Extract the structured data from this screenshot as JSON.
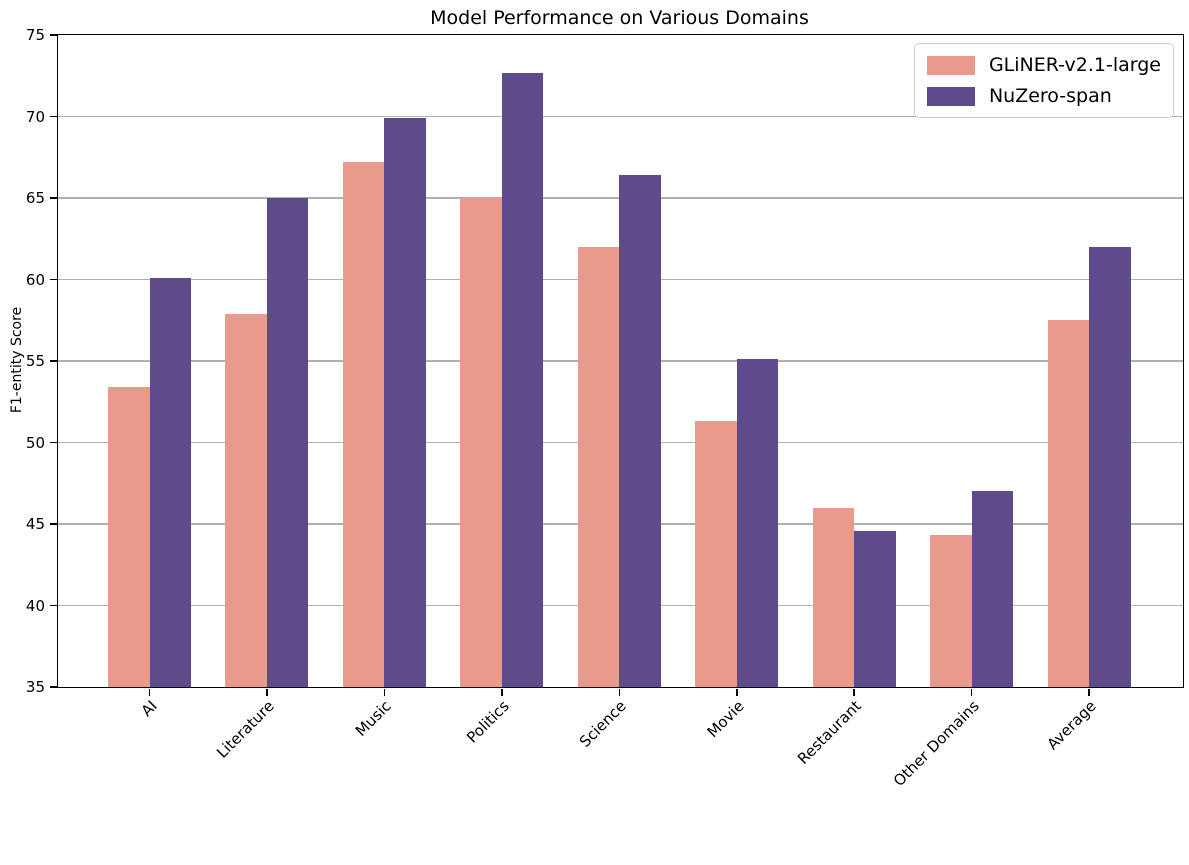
{
  "chart_data": {
    "type": "bar",
    "title": "Model Performance on Various Domains",
    "xlabel": "",
    "ylabel": "F1-entity Score",
    "ylim": [
      35,
      75
    ],
    "yticks": [
      35,
      40,
      45,
      50,
      55,
      60,
      65,
      70,
      75
    ],
    "grid": "horizontal gridlines at each y tick, light gray",
    "grid_color": "#b0b0b0",
    "legend_position": "upper-right",
    "legend_border_color": "#cccccc",
    "categories": [
      "AI",
      "Literature",
      "Music",
      "Politics",
      "Science",
      "Movie",
      "Restaurant",
      "Other Domains",
      "Average"
    ],
    "series": [
      {
        "name": "GLiNER-v2.1-large",
        "color": "#e89a8c",
        "values": [
          53.4,
          57.9,
          67.2,
          65.0,
          62.0,
          51.3,
          46.0,
          44.3,
          57.5
        ]
      },
      {
        "name": "NuZero-span",
        "color": "#5e4b8b",
        "values": [
          60.1,
          65.0,
          69.9,
          72.7,
          66.4,
          55.1,
          44.6,
          47.0,
          62.0
        ]
      }
    ]
  }
}
